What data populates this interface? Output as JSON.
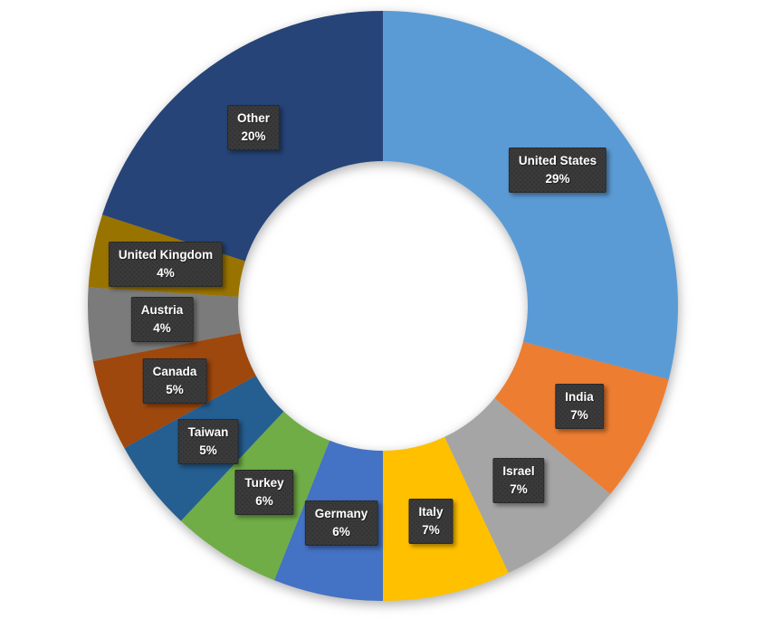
{
  "chart_data": {
    "type": "pie",
    "subtype": "doughnut",
    "title": "",
    "legend": "none",
    "direction": "clockwise",
    "start_angle_deg": 0,
    "hole_ratio": 0.49,
    "unit": "%",
    "label_format": "name-newline-percent",
    "label_bg_color": "#3A3A3A",
    "label_text_color": "#FFFFFF",
    "background_color": "#FFFFFF",
    "categories": [
      "United States",
      "India",
      "Israel",
      "Italy",
      "Germany",
      "Turkey",
      "Taiwan",
      "Canada",
      "Austria",
      "United Kingdom",
      "Other"
    ],
    "values": [
      29,
      7,
      7,
      7,
      6,
      6,
      5,
      5,
      4,
      4,
      20
    ],
    "colors": [
      "#5B9BD5",
      "#ED7D31",
      "#A5A5A5",
      "#FFC000",
      "#4472C4",
      "#70AD47",
      "#255E91",
      "#9E480E",
      "#7B7B7B",
      "#997300",
      "#264478"
    ]
  }
}
